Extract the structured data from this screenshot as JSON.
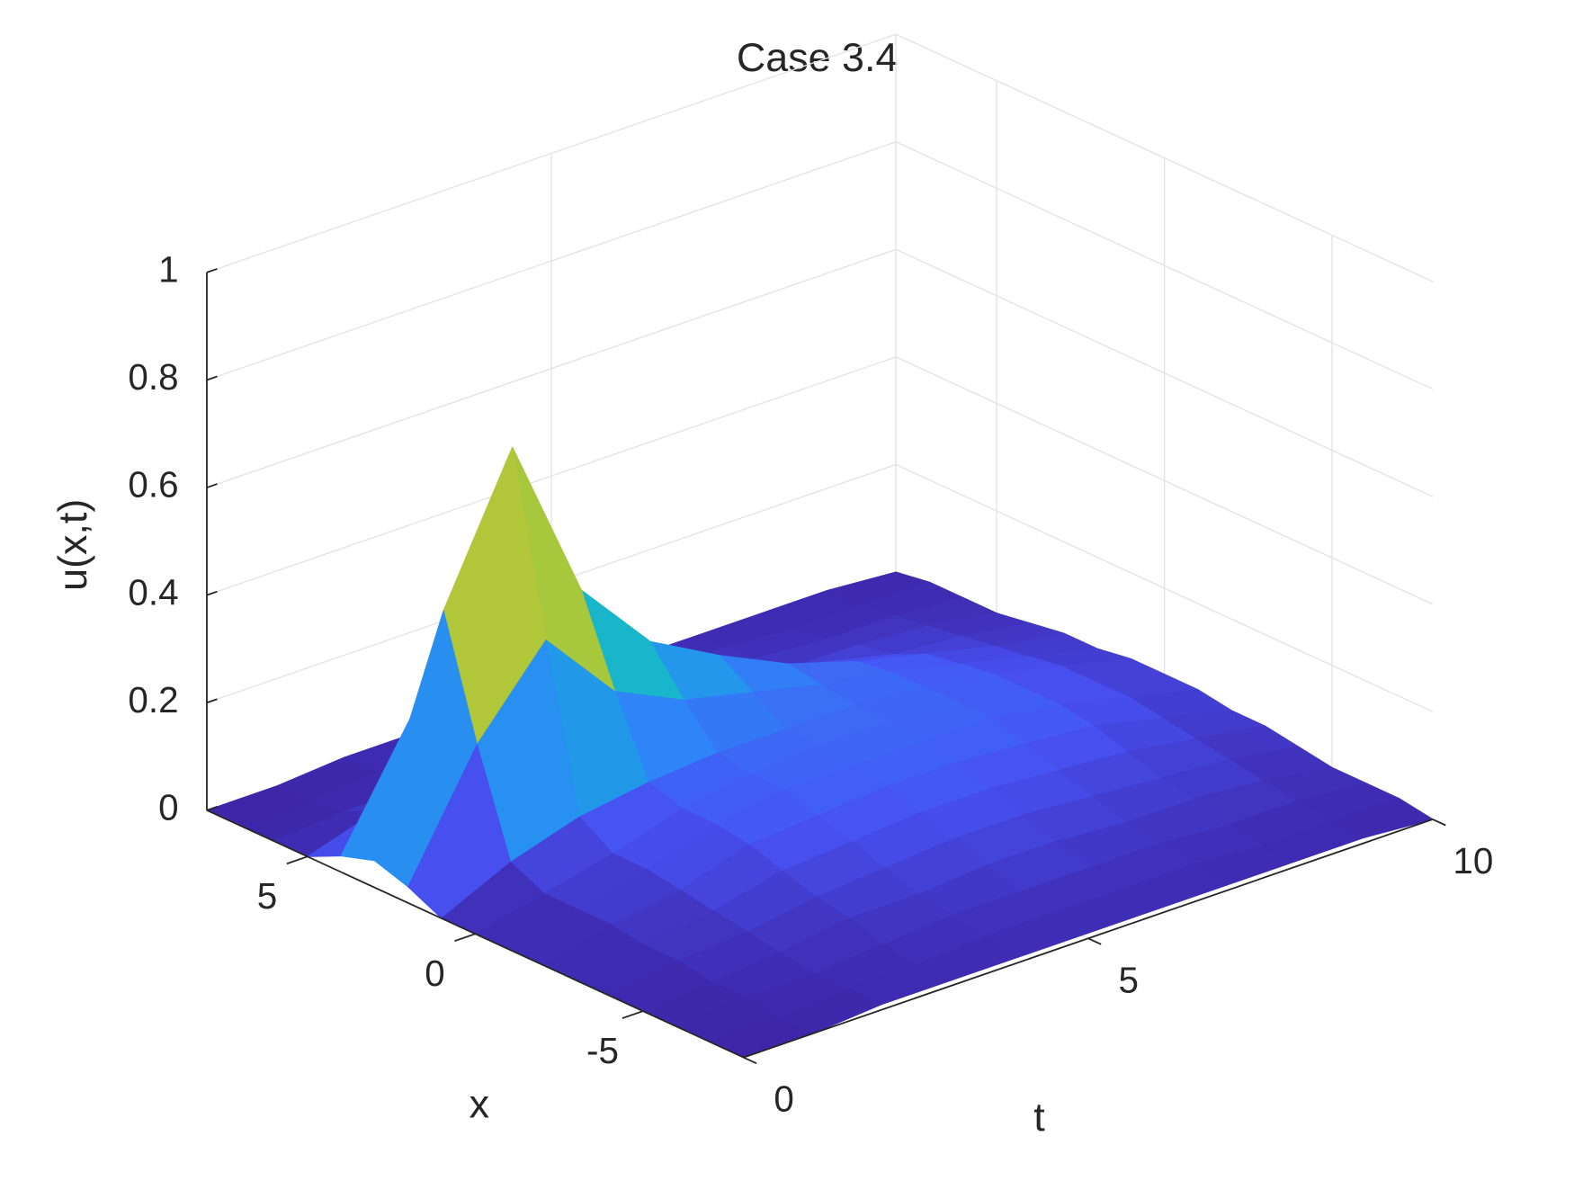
{
  "chart_data": {
    "type": "surface",
    "title": "Case 3.4",
    "xlabel": "x",
    "tlabel": "t",
    "zlabel": "u(x,t)",
    "colormap": "parula",
    "grid": true,
    "xlim": [
      -8,
      8
    ],
    "tlim": [
      0,
      10
    ],
    "zlim": [
      0,
      1
    ],
    "xticks": [
      -5,
      0,
      5
    ],
    "tticks": [
      0,
      5,
      10
    ],
    "zticks": [
      0,
      0.2,
      0.4,
      0.6,
      0.8,
      1
    ],
    "x": [
      -8,
      -7,
      -6,
      -5,
      -4,
      -3,
      -2,
      -1,
      0,
      1,
      2,
      3,
      4,
      5,
      6,
      7,
      8
    ],
    "t": [
      0,
      1,
      2,
      3,
      4,
      5,
      6,
      7,
      8,
      9,
      10
    ],
    "z": [
      [
        0,
        0,
        0,
        0,
        0,
        0,
        0,
        0,
        0,
        0,
        0.03,
        0.05,
        0.03,
        0,
        0,
        0,
        0
      ],
      [
        0,
        0,
        0.01,
        0.01,
        0.02,
        0.02,
        0.03,
        0.03,
        0.03,
        0.06,
        0.25,
        0.47,
        0.24,
        0.04,
        0.01,
        0,
        0
      ],
      [
        0.01,
        0.01,
        0.01,
        0.02,
        0.03,
        0.04,
        0.05,
        0.06,
        0.06,
        0.1,
        0.4,
        0.73,
        0.38,
        0.07,
        0.01,
        0.01,
        0.01
      ],
      [
        0.01,
        0.01,
        0.02,
        0.04,
        0.05,
        0.07,
        0.09,
        0.1,
        0.1,
        0.12,
        0.26,
        0.42,
        0.23,
        0.06,
        0.02,
        0.01,
        0.01
      ],
      [
        0.01,
        0.02,
        0.03,
        0.04,
        0.06,
        0.08,
        0.1,
        0.12,
        0.12,
        0.13,
        0.2,
        0.28,
        0.16,
        0.06,
        0.03,
        0.02,
        0.01
      ],
      [
        0.01,
        0.02,
        0.03,
        0.05,
        0.07,
        0.09,
        0.11,
        0.12,
        0.13,
        0.13,
        0.17,
        0.21,
        0.13,
        0.06,
        0.03,
        0.02,
        0.01
      ],
      [
        0.01,
        0.02,
        0.03,
        0.05,
        0.07,
        0.09,
        0.11,
        0.12,
        0.13,
        0.13,
        0.14,
        0.15,
        0.1,
        0.05,
        0.03,
        0.02,
        0.01
      ],
      [
        0.01,
        0.02,
        0.03,
        0.04,
        0.06,
        0.08,
        0.1,
        0.12,
        0.12,
        0.12,
        0.12,
        0.11,
        0.08,
        0.04,
        0.03,
        0.02,
        0.01
      ],
      [
        0.01,
        0.01,
        0.02,
        0.04,
        0.05,
        0.07,
        0.09,
        0.1,
        0.1,
        0.1,
        0.09,
        0.08,
        0.05,
        0.04,
        0.02,
        0.01,
        0.01
      ],
      [
        0.01,
        0.01,
        0.02,
        0.03,
        0.04,
        0.05,
        0.06,
        0.07,
        0.07,
        0.07,
        0.06,
        0.05,
        0.04,
        0.03,
        0.02,
        0.01,
        0.01
      ],
      [
        0,
        0.01,
        0.01,
        0.01,
        0.02,
        0.03,
        0.03,
        0.04,
        0.04,
        0.04,
        0.03,
        0.03,
        0.02,
        0.01,
        0.01,
        0.01,
        0
      ]
    ]
  }
}
